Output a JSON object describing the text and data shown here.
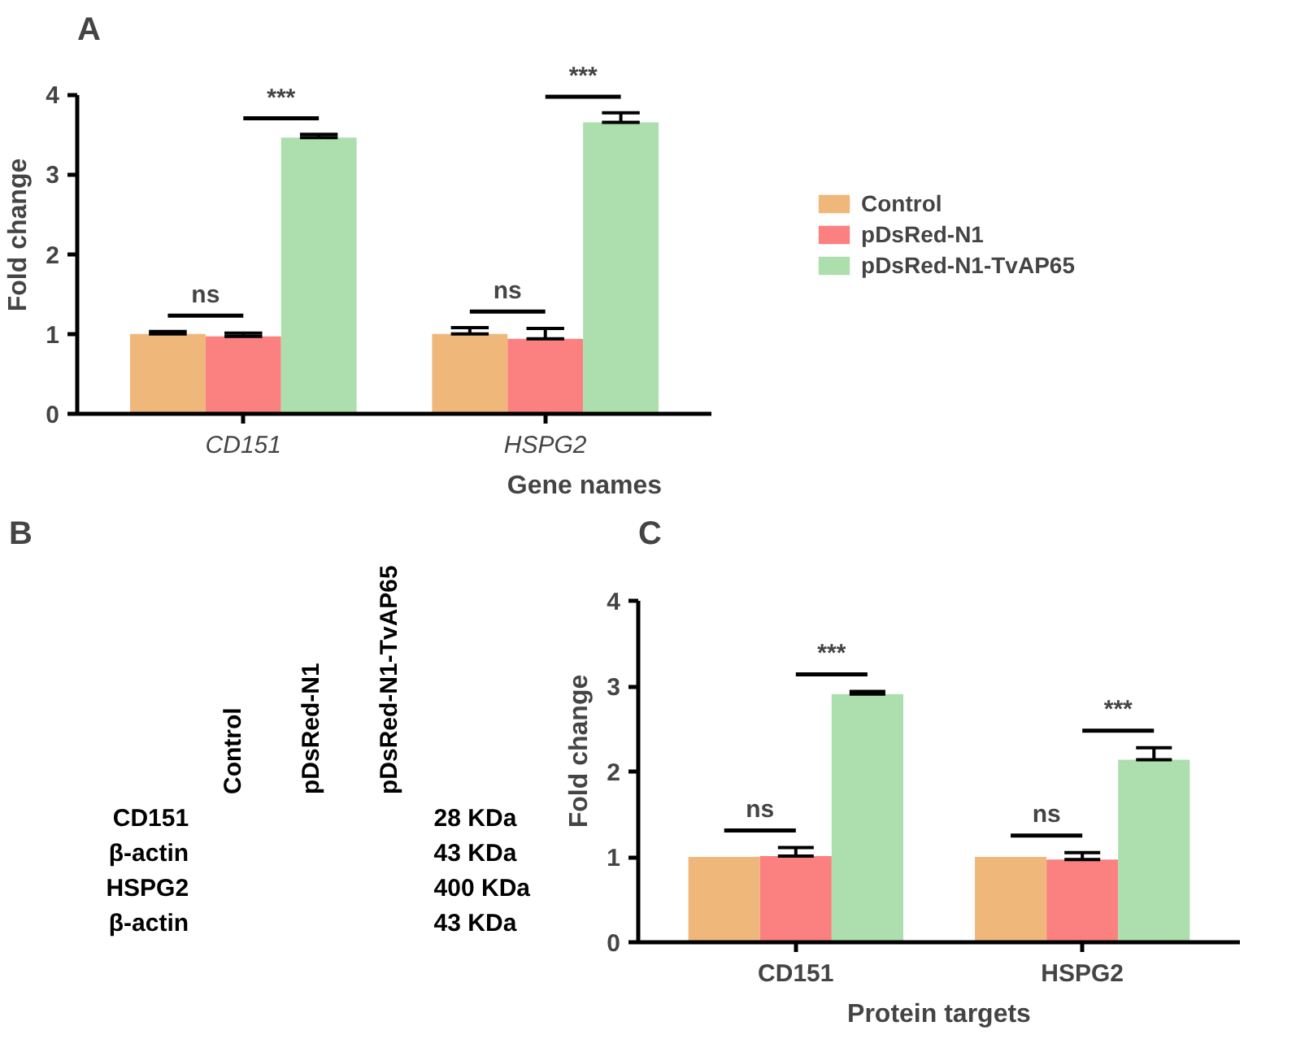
{
  "chart_data": [
    {
      "type": "bar",
      "title": "A",
      "xlabel": "Gene names",
      "ylabel": "Fold change",
      "categories": [
        "CD151",
        "HSPG2"
      ],
      "ylim": [
        0,
        4
      ],
      "yticks": [
        0,
        1,
        2,
        3,
        4
      ],
      "grid": false,
      "legend": "right",
      "series": [
        {
          "name": "Control",
          "color": "#f0b77b",
          "values": [
            1.0,
            1.0
          ],
          "errors": [
            [
              1.0,
              1.03
            ],
            [
              1.0,
              1.08
            ]
          ]
        },
        {
          "name": "pDsRed-N1",
          "color": "#fb8080",
          "values": [
            0.97,
            0.94
          ],
          "errors": [
            [
              0.97,
              1.01
            ],
            [
              0.94,
              1.07
            ]
          ]
        },
        {
          "name": "pDsRed-N1-TvAP65",
          "color": "#acdeae",
          "values": [
            3.46,
            3.65
          ],
          "errors": [
            [
              3.46,
              3.5
            ],
            [
              3.65,
              3.77
            ]
          ]
        }
      ],
      "annotations": [
        "ns",
        "***",
        "ns",
        "***"
      ]
    },
    {
      "type": "other",
      "title": "B",
      "categories": [
        "Control",
        "pDsRed-N1",
        "pDsRed-N1-TvAP65"
      ],
      "y_categories": [
        "CD151",
        "β-actin",
        "HSPG2",
        "β-actin"
      ],
      "y2_categories": [
        "28 KDa",
        "43 KDa",
        "400 KDa",
        "43 KDa"
      ]
    },
    {
      "type": "bar",
      "title": "C",
      "xlabel": "Protein targets",
      "ylabel": "Fold change",
      "categories": [
        "CD151",
        "HSPG2"
      ],
      "ylim": [
        0,
        4
      ],
      "yticks": [
        0,
        1,
        2,
        3,
        4
      ],
      "grid": false,
      "series": [
        {
          "color": "#f0b77b",
          "values": [
            1.0,
            1.0
          ]
        },
        {
          "color": "#fb8080",
          "values": [
            1.01,
            0.97
          ],
          "errors": [
            [
              1.01,
              1.11
            ],
            [
              0.97,
              1.05
            ]
          ]
        },
        {
          "color": "#acdeae",
          "values": [
            2.91,
            2.14
          ],
          "errors": [
            [
              2.91,
              2.94
            ],
            [
              2.14,
              2.28
            ]
          ]
        }
      ],
      "annotations": [
        "ns",
        "***",
        "ns",
        "***"
      ]
    }
  ]
}
